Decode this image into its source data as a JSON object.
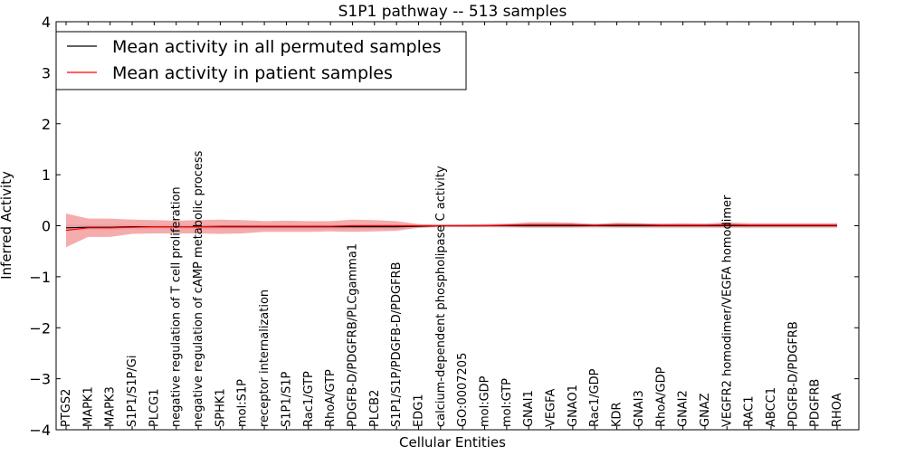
{
  "chart_data": {
    "type": "line",
    "title": "S1P1 pathway -- 513 samples",
    "xlabel": "Cellular Entities",
    "ylabel": "Inferred Activity",
    "ylim": [
      -4,
      4
    ],
    "yticks": [
      -4,
      -3,
      -2,
      -1,
      0,
      1,
      2,
      3,
      4
    ],
    "ytick_labels": [
      "−4",
      "−3",
      "−2",
      "−1",
      "0",
      "1",
      "2",
      "3",
      "4"
    ],
    "grid": false,
    "legend_position": "top-left",
    "categories": [
      "PTGS2",
      "MAPK1",
      "MAPK3",
      "S1P1/S1P/Gi",
      "PLCG1",
      "negative regulation of T cell proliferation",
      "negative regulation of cAMP metabolic process",
      "SPHK1",
      "mol:S1P",
      "receptor internalization",
      "S1P1/S1P",
      "Rac1/GTP",
      "RhoA/GTP",
      "PDGFB-D/PDGFRB/PLCgamma1",
      "PLCB2",
      "S1P1/S1P/PDGFB-D/PDGFRB",
      "EDG1",
      "calcium-dependent phospholipase C activity",
      "GO:0007205",
      "mol:GDP",
      "mol:GTP",
      "GNAI1",
      "VEGFA",
      "GNAO1",
      "Rac1/GDP",
      "KDR",
      "GNAI3",
      "RhoA/GDP",
      "GNAI2",
      "GNAZ",
      "VEGFR2 homodimer/VEGFA homodimer",
      "RAC1",
      "ABCC1",
      "PDGFB-D/PDGFRB",
      "PDGFRB",
      "RHOA"
    ],
    "series": [
      {
        "name": "Mean activity in all permuted samples",
        "color": "#000000",
        "values": [
          -0.04,
          -0.03,
          -0.03,
          -0.02,
          -0.02,
          -0.02,
          -0.02,
          -0.02,
          -0.02,
          -0.02,
          -0.02,
          -0.02,
          -0.02,
          -0.02,
          -0.02,
          -0.02,
          -0.01,
          0,
          0,
          0,
          0,
          0,
          0,
          0,
          0,
          0,
          0,
          0,
          0,
          0,
          0,
          0,
          0,
          0,
          0,
          0
        ],
        "band_color": "#b8b8d0",
        "band_upper": [
          0.02,
          0.02,
          0.02,
          0.02,
          0.02,
          0.02,
          0.02,
          0.02,
          0.02,
          0.02,
          0.02,
          0.02,
          0.02,
          0.02,
          0.02,
          0.02,
          0.02,
          0.02,
          0.03,
          0.03,
          0.04,
          0.05,
          0.05,
          0.05,
          0.05,
          0.05,
          0.05,
          0.05,
          0.05,
          0.05,
          0.05,
          0.05,
          0.05,
          0.05,
          0.05,
          0.05
        ],
        "band_lower": [
          -0.1,
          -0.08,
          -0.08,
          -0.07,
          -0.07,
          -0.07,
          -0.07,
          -0.07,
          -0.07,
          -0.07,
          -0.07,
          -0.07,
          -0.07,
          -0.07,
          -0.07,
          -0.07,
          -0.05,
          -0.03,
          -0.03,
          -0.03,
          -0.04,
          -0.05,
          -0.05,
          -0.05,
          -0.05,
          -0.05,
          -0.05,
          -0.05,
          -0.05,
          -0.05,
          -0.05,
          -0.05,
          -0.05,
          -0.05,
          -0.05,
          -0.05
        ]
      },
      {
        "name": "Mean activity in patient samples",
        "color": "#ff0000",
        "values": [
          -0.09,
          -0.04,
          -0.04,
          -0.03,
          -0.02,
          -0.02,
          -0.02,
          -0.01,
          -0.01,
          -0.01,
          -0.01,
          -0.01,
          -0.01,
          0,
          0,
          0,
          0,
          0,
          0,
          0,
          0.01,
          0.02,
          0.02,
          0.02,
          0.01,
          0.02,
          0.02,
          0.01,
          0.01,
          0.01,
          0.02,
          0.01,
          0.01,
          0.01,
          0.01,
          0.01
        ],
        "band_color": "#f08080",
        "band_upper": [
          0.24,
          0.14,
          0.14,
          0.12,
          0.11,
          0.1,
          0.11,
          0.12,
          0.11,
          0.09,
          0.1,
          0.09,
          0.09,
          0.12,
          0.11,
          0.09,
          0.03,
          0.02,
          0.02,
          0.03,
          0.04,
          0.07,
          0.07,
          0.06,
          0.03,
          0.06,
          0.05,
          0.04,
          0.05,
          0.04,
          0.07,
          0.05,
          0.05,
          0.05,
          0.05,
          0.05
        ],
        "band_lower": [
          -0.42,
          -0.22,
          -0.22,
          -0.16,
          -0.15,
          -0.15,
          -0.15,
          -0.16,
          -0.15,
          -0.12,
          -0.12,
          -0.12,
          -0.11,
          -0.12,
          -0.11,
          -0.1,
          -0.04,
          -0.02,
          -0.02,
          -0.02,
          -0.02,
          -0.03,
          -0.03,
          -0.03,
          -0.02,
          -0.03,
          -0.03,
          -0.03,
          -0.03,
          -0.03,
          -0.03,
          -0.03,
          -0.03,
          -0.03,
          -0.03,
          -0.03
        ]
      }
    ]
  }
}
